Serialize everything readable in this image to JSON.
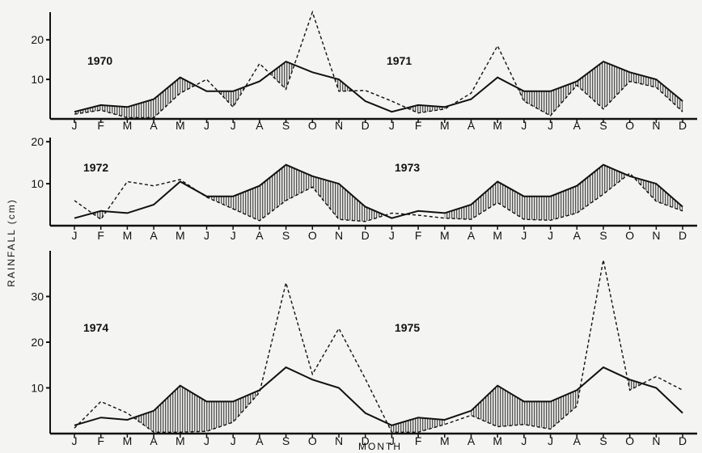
{
  "chart_data": {
    "type": "line",
    "ylabel": "RAINFALL (cm)",
    "xlabel": "MONTH",
    "months": [
      "J",
      "F",
      "M",
      "A",
      "M",
      "J",
      "J",
      "A",
      "S",
      "O",
      "N",
      "D"
    ],
    "normal_monthly": [
      1.8,
      3.5,
      3.0,
      5.0,
      10.5,
      7.0,
      7.0,
      9.5,
      14.5,
      11.8,
      10.0,
      4.5
    ],
    "panels": [
      {
        "ylim": [
          0,
          27
        ],
        "yticks": [
          10,
          20
        ],
        "years": [
          "1970",
          "1971"
        ],
        "series": [
          {
            "style": "solid",
            "values": [
              1.8,
              3.5,
              3.0,
              5.0,
              10.5,
              7.0,
              7.0,
              9.5,
              14.5,
              11.8,
              10.0,
              4.5,
              1.8,
              3.5,
              3.0,
              5.0,
              10.5,
              7.0,
              7.0,
              9.5,
              14.5,
              11.8,
              10.0,
              4.5
            ]
          },
          {
            "style": "dashed",
            "values": [
              1.2,
              2.2,
              0.3,
              0.3,
              6.5,
              10.0,
              3.0,
              14.0,
              7.5,
              27.0,
              7.0,
              7.2,
              4.5,
              1.5,
              2.5,
              6.5,
              18.5,
              4.5,
              0.8,
              8.5,
              2.5,
              9.5,
              8.0,
              1.8
            ]
          }
        ]
      },
      {
        "ylim": [
          0,
          21
        ],
        "yticks": [
          10,
          20
        ],
        "years": [
          "1972",
          "1973"
        ],
        "series": [
          {
            "style": "solid",
            "values": [
              1.8,
              3.5,
              3.0,
              5.0,
              10.5,
              7.0,
              7.0,
              9.5,
              14.5,
              11.8,
              10.0,
              4.5,
              1.8,
              3.5,
              3.0,
              5.0,
              10.5,
              7.0,
              7.0,
              9.5,
              14.5,
              11.8,
              10.0,
              4.5
            ]
          },
          {
            "style": "dashed",
            "values": [
              6.0,
              1.5,
              10.5,
              9.5,
              11.0,
              6.8,
              4.0,
              1.2,
              6.0,
              9.2,
              1.5,
              1.0,
              3.0,
              2.5,
              1.8,
              1.5,
              5.5,
              1.5,
              1.3,
              3.0,
              7.5,
              12.5,
              5.8,
              3.5
            ]
          }
        ]
      },
      {
        "ylim": [
          0,
          40
        ],
        "yticks": [
          10,
          20,
          30
        ],
        "years": [
          "1974",
          "1975"
        ],
        "series": [
          {
            "style": "solid",
            "values": [
              1.8,
              3.5,
              3.0,
              5.0,
              10.5,
              7.0,
              7.0,
              9.5,
              14.5,
              11.8,
              10.0,
              4.5,
              1.8,
              3.5,
              3.0,
              5.0,
              10.5,
              7.0,
              7.0,
              9.5,
              14.5,
              11.8,
              10.0,
              4.5
            ]
          },
          {
            "style": "dashed",
            "values": [
              1.2,
              7.0,
              4.5,
              0.3,
              0.3,
              0.5,
              2.5,
              9.0,
              33.0,
              13.0,
              23.0,
              12.0,
              0.3,
              0.3,
              2.0,
              4.0,
              1.5,
              2.0,
              1.0,
              6.0,
              38.0,
              9.5,
              12.5,
              9.5
            ]
          }
        ]
      }
    ]
  }
}
